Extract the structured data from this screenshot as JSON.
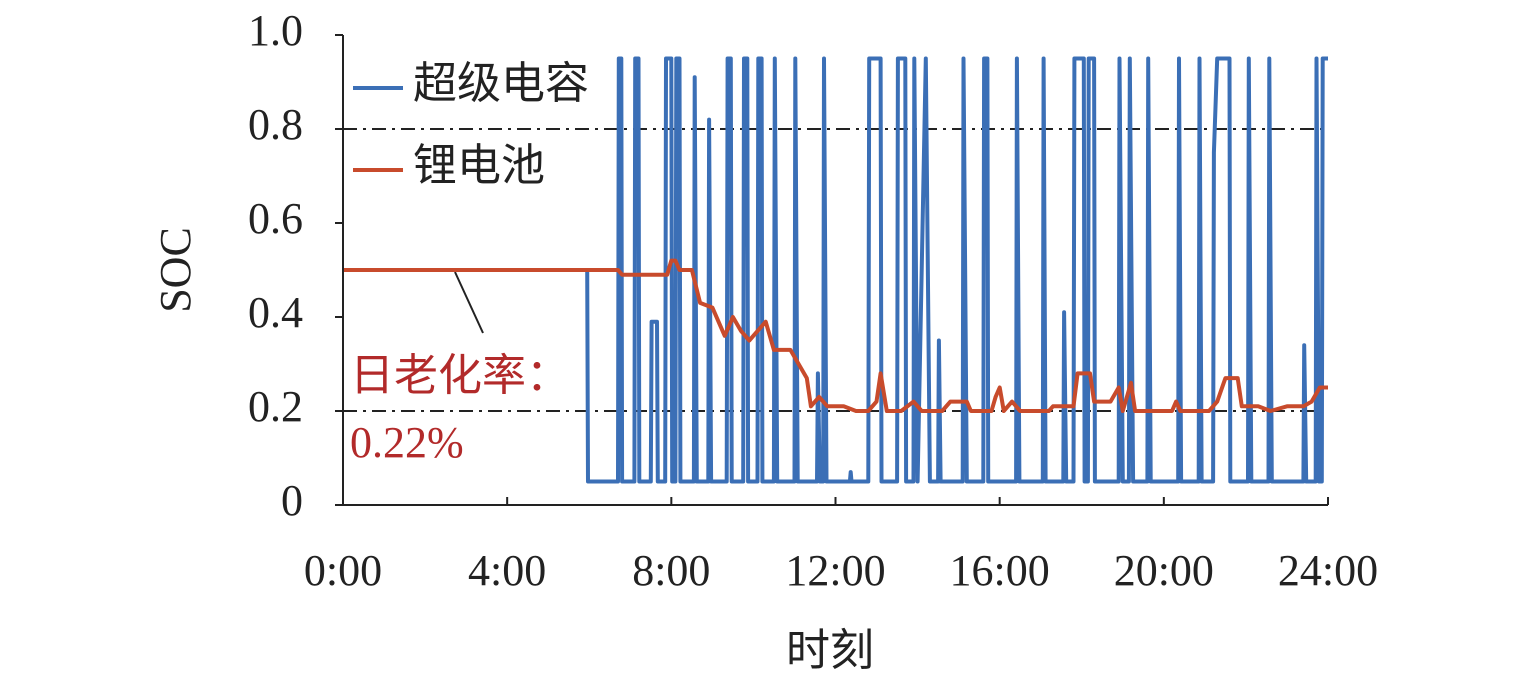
{
  "chart_data": {
    "type": "line",
    "xlabel": "时刻",
    "ylabel": "SOC",
    "xlim": [
      0,
      24
    ],
    "xticks": [
      {
        "value": 0,
        "label": "0:00"
      },
      {
        "value": 4,
        "label": "4:00"
      },
      {
        "value": 8,
        "label": "8:00"
      },
      {
        "value": 12,
        "label": "12:00"
      },
      {
        "value": 16,
        "label": "16:00"
      },
      {
        "value": 20,
        "label": "20:00"
      },
      {
        "value": 24,
        "label": "24:00"
      }
    ],
    "ylim": [
      0,
      1
    ],
    "yticks": [
      0,
      0.2,
      0.4,
      0.6,
      0.8,
      {
        "value": 1,
        "label": "1.0"
      }
    ],
    "hlines": [
      0.2,
      0.8
    ],
    "legend": "upper left",
    "annotation": [
      "日老化率：",
      "0.22%"
    ],
    "series": [
      {
        "name": "超级电容",
        "color": "#3b6fb6",
        "x": [
          0,
          5.95,
          5.97,
          6.7,
          6.72,
          6.78,
          6.8,
          7.1,
          7.12,
          7.2,
          7.22,
          7.5,
          7.52,
          7.65,
          7.67,
          7.85,
          7.87,
          8.0,
          8.02,
          8.1,
          8.12,
          8.2,
          8.22,
          8.55,
          8.57,
          8.62,
          8.9,
          8.92,
          8.97,
          9.35,
          9.37,
          9.45,
          9.47,
          9.75,
          9.77,
          9.85,
          9.87,
          10.1,
          10.12,
          10.2,
          10.22,
          10.5,
          10.52,
          10.58,
          11.0,
          11.02,
          11.08,
          11.55,
          11.57,
          11.62,
          11.7,
          11.72,
          11.78,
          12.35,
          12.37,
          12.39,
          12.8,
          12.82,
          13.1,
          13.12,
          13.5,
          13.52,
          13.7,
          13.72,
          13.9,
          13.92,
          14.0,
          14.2,
          14.3,
          14.5,
          14.52,
          14.56,
          15.1,
          15.12,
          15.2,
          15.6,
          15.62,
          15.7,
          15.72,
          16.4,
          16.42,
          16.48,
          17.05,
          17.07,
          17.12,
          17.55,
          17.57,
          17.62,
          17.8,
          17.82,
          18.05,
          18.07,
          18.15,
          18.17,
          18.3,
          18.32,
          18.9,
          18.92,
          19.0,
          19.15,
          19.17,
          19.25,
          19.6,
          19.62,
          19.68,
          20.35,
          20.37,
          20.42,
          20.85,
          20.87,
          20.92,
          21.2,
          21.22,
          21.3,
          21.6,
          21.62,
          22.05,
          22.07,
          22.13,
          22.55,
          22.57,
          22.63,
          23.4,
          23.42,
          23.47,
          23.7,
          23.72,
          23.78,
          23.85,
          23.87,
          24
        ],
        "values": [
          0.5,
          0.5,
          0.05,
          0.05,
          0.95,
          0.95,
          0.05,
          0.05,
          0.95,
          0.95,
          0.05,
          0.05,
          0.39,
          0.39,
          0.05,
          0.05,
          0.95,
          0.95,
          0.05,
          0.05,
          0.95,
          0.95,
          0.05,
          0.05,
          0.91,
          0.05,
          0.05,
          0.82,
          0.05,
          0.05,
          0.95,
          0.95,
          0.05,
          0.05,
          0.95,
          0.95,
          0.05,
          0.05,
          0.95,
          0.95,
          0.05,
          0.05,
          0.95,
          0.05,
          0.05,
          0.95,
          0.05,
          0.05,
          0.28,
          0.05,
          0.05,
          0.95,
          0.05,
          0.05,
          0.07,
          0.05,
          0.05,
          0.95,
          0.95,
          0.05,
          0.05,
          0.95,
          0.95,
          0.05,
          0.05,
          0.95,
          0.05,
          0.95,
          0.05,
          0.05,
          0.35,
          0.05,
          0.05,
          0.95,
          0.05,
          0.05,
          0.95,
          0.95,
          0.05,
          0.05,
          0.95,
          0.05,
          0.05,
          0.95,
          0.05,
          0.05,
          0.41,
          0.05,
          0.05,
          0.95,
          0.95,
          0.05,
          0.05,
          0.95,
          0.95,
          0.05,
          0.05,
          0.95,
          0.05,
          0.05,
          0.95,
          0.05,
          0.05,
          0.95,
          0.05,
          0.05,
          0.95,
          0.05,
          0.05,
          0.95,
          0.05,
          0.05,
          0.75,
          0.95,
          0.95,
          0.05,
          0.05,
          0.95,
          0.05,
          0.05,
          0.95,
          0.05,
          0.05,
          0.34,
          0.05,
          0.05,
          0.95,
          0.05,
          0.05,
          0.95,
          0.95
        ]
      },
      {
        "name": "锂电池",
        "color": "#c84b2c",
        "x": [
          0,
          6.7,
          6.8,
          7.9,
          8.0,
          8.1,
          8.2,
          8.5,
          8.7,
          9.0,
          9.2,
          9.3,
          9.5,
          9.7,
          9.9,
          10.1,
          10.3,
          10.5,
          10.9,
          11.1,
          11.3,
          11.4,
          11.6,
          11.8,
          12.2,
          12.5,
          12.8,
          13.0,
          13.1,
          13.25,
          13.6,
          13.9,
          14.1,
          14.6,
          14.8,
          15.2,
          15.3,
          15.8,
          15.9,
          16.0,
          16.1,
          16.3,
          16.5,
          17.2,
          17.3,
          17.8,
          17.9,
          18.2,
          18.3,
          18.7,
          18.9,
          19.0,
          19.2,
          19.3,
          20.2,
          20.3,
          20.4,
          21.1,
          21.3,
          21.5,
          21.8,
          21.9,
          22.3,
          22.6,
          23.0,
          23.4,
          23.6,
          23.8,
          24
        ],
        "values": [
          0.5,
          0.5,
          0.49,
          0.49,
          0.52,
          0.52,
          0.5,
          0.5,
          0.43,
          0.42,
          0.38,
          0.36,
          0.4,
          0.37,
          0.35,
          0.37,
          0.39,
          0.33,
          0.33,
          0.3,
          0.27,
          0.21,
          0.23,
          0.21,
          0.21,
          0.2,
          0.2,
          0.22,
          0.28,
          0.2,
          0.2,
          0.22,
          0.2,
          0.2,
          0.22,
          0.22,
          0.2,
          0.2,
          0.23,
          0.25,
          0.2,
          0.22,
          0.2,
          0.2,
          0.21,
          0.21,
          0.28,
          0.28,
          0.22,
          0.22,
          0.25,
          0.2,
          0.26,
          0.2,
          0.2,
          0.22,
          0.2,
          0.2,
          0.22,
          0.27,
          0.27,
          0.21,
          0.21,
          0.2,
          0.21,
          0.21,
          0.22,
          0.25,
          0.25
        ]
      }
    ]
  }
}
